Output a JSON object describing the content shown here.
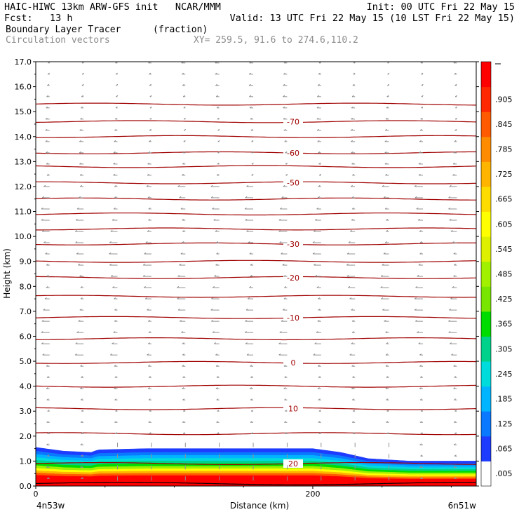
{
  "header": {
    "line1_left": "HAIC-HIWC 13km ARW-GFS init   NCAR/MMM",
    "line1_right": "Init: 00 UTC Fri 22 May 15",
    "line2_left": "Fcst:   13 h",
    "line2_right": "Valid: 13 UTC Fri 22 May 15 (10 LST Fri 22 May 15)",
    "field_name": "Boundary Layer Tracer",
    "field_units": "(fraction)",
    "overlay_name": "Circulation vectors",
    "xsec_coords": "XY= 259.5, 91.6 to 274.6,110.2"
  },
  "chart_data": {
    "type": "heatmap",
    "title": "Boundary Layer Tracer",
    "xlabel": "Distance (km)",
    "ylabel": "Height (km)",
    "xlim": [
      0,
      318
    ],
    "ylim": [
      0,
      17
    ],
    "x_ticks": [
      0,
      200
    ],
    "x_tick_labels": [
      "0",
      "200"
    ],
    "x_left_label": "4n53w",
    "x_right_label": "6n51w",
    "y_ticks": [
      0,
      1,
      2,
      3,
      4,
      5,
      6,
      7,
      8,
      9,
      10,
      11,
      12,
      13,
      14,
      15,
      16,
      17
    ],
    "y_tick_labels": [
      "0.0",
      "1.0",
      "2.0",
      "3.0",
      "4.0",
      "5.0",
      "6.0",
      "7.0",
      "8.0",
      "9.0",
      "10.0",
      "11.0",
      "12.0",
      "13.0",
      "14.0",
      "15.0",
      "16.0",
      "17.0"
    ],
    "colorbar": {
      "labels": [
        ".005",
        ".065",
        ".125",
        ".185",
        ".245",
        ".305",
        ".365",
        ".425",
        ".485",
        ".545",
        ".605",
        ".665",
        ".725",
        ".785",
        ".845",
        ".905"
      ],
      "colors": [
        "#ffffff",
        "#1e3cff",
        "#0a78ff",
        "#00b4ff",
        "#00dcdc",
        "#00d28c",
        "#00dc00",
        "#78e600",
        "#a0f000",
        "#dcf000",
        "#ffff00",
        "#ffdc00",
        "#ffb400",
        "#ff8c00",
        "#ff5a00",
        "#ff2800",
        "#ff0000"
      ]
    },
    "tracer_top_km": [
      [
        0,
        1.55
      ],
      [
        20,
        1.4
      ],
      [
        40,
        1.35
      ],
      [
        45,
        1.45
      ],
      [
        80,
        1.5
      ],
      [
        160,
        1.5
      ],
      [
        200,
        1.5
      ],
      [
        220,
        1.35
      ],
      [
        240,
        1.1
      ],
      [
        270,
        1.0
      ],
      [
        318,
        1.0
      ]
    ],
    "isotherms": [
      {
        "label": "20",
        "height": 0.9
      },
      {
        "label": "",
        "height": 2.1
      },
      {
        "label": "10",
        "height": 3.1
      },
      {
        "label": "",
        "height": 4.0
      },
      {
        "label": "0",
        "height": 4.95
      },
      {
        "label": "",
        "height": 5.9
      },
      {
        "label": "-10",
        "height": 6.75
      },
      {
        "label": "",
        "height": 7.6
      },
      {
        "label": "-20",
        "height": 8.35
      },
      {
        "label": "",
        "height": 9.0
      },
      {
        "label": "-30",
        "height": 9.7
      },
      {
        "label": "",
        "height": 10.3
      },
      {
        "label": "",
        "height": 10.9
      },
      {
        "label": "",
        "height": 11.5
      },
      {
        "label": "-50",
        "height": 12.15
      },
      {
        "label": "",
        "height": 12.8
      },
      {
        "label": "-60",
        "height": 13.35
      },
      {
        "label": "",
        "height": 14.0
      },
      {
        "label": "-70",
        "height": 14.6
      },
      {
        "label": "",
        "height": 15.3
      }
    ],
    "isotherm_color": "#a00000",
    "vector_color": "#909090"
  }
}
